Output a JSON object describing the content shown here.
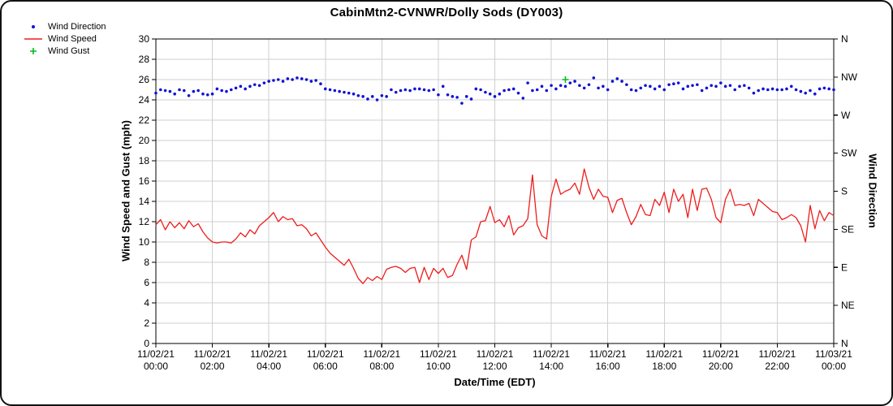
{
  "title": "CabinMtn2-CVNWR/Dolly Sods (DY003)",
  "legend": {
    "items": [
      {
        "label": "Wind Direction",
        "marker": "dot",
        "color": "#1212d6"
      },
      {
        "label": "Wind Speed",
        "marker": "line",
        "color": "#ee1c1c"
      },
      {
        "label": "Wind Gust",
        "marker": "plus",
        "color": "#00bb22"
      }
    ]
  },
  "chart_data": {
    "type": "line",
    "title": "CabinMtn2-CVNWR/Dolly Sods (DY003)",
    "xlabel": "Date/Time (EDT)",
    "ylabel_left": "Wind Speed and Gust (mph)",
    "ylabel_right": "Wind Direction",
    "ylim_left": [
      0,
      30
    ],
    "grid": true,
    "legend_position": "top-left",
    "interval_minutes": 10,
    "x_start": "11/02/21 00:00",
    "x_end": "11/03/21 00:00",
    "y_ticks_left": [
      0,
      2,
      4,
      6,
      8,
      10,
      12,
      14,
      16,
      18,
      20,
      22,
      24,
      26,
      28,
      30
    ],
    "x_ticks": [
      {
        "date": "11/02/21",
        "time": "00:00"
      },
      {
        "date": "11/02/21",
        "time": "02:00"
      },
      {
        "date": "11/02/21",
        "time": "04:00"
      },
      {
        "date": "11/02/21",
        "time": "06:00"
      },
      {
        "date": "11/02/21",
        "time": "08:00"
      },
      {
        "date": "11/02/21",
        "time": "10:00"
      },
      {
        "date": "11/02/21",
        "time": "12:00"
      },
      {
        "date": "11/02/21",
        "time": "14:00"
      },
      {
        "date": "11/02/21",
        "time": "16:00"
      },
      {
        "date": "11/02/21",
        "time": "18:00"
      },
      {
        "date": "11/02/21",
        "time": "20:00"
      },
      {
        "date": "11/02/21",
        "time": "22:00"
      },
      {
        "date": "11/03/21",
        "time": "00:00"
      }
    ],
    "right_axis_ticks": [
      {
        "label": "N",
        "mph_equiv": 30
      },
      {
        "label": "NW",
        "mph_equiv": 26.25
      },
      {
        "label": "W",
        "mph_equiv": 22.5
      },
      {
        "label": "SW",
        "mph_equiv": 18.75
      },
      {
        "label": "S",
        "mph_equiv": 15
      },
      {
        "label": "SE",
        "mph_equiv": 11.25
      },
      {
        "label": "E",
        "mph_equiv": 7.5
      },
      {
        "label": "NE",
        "mph_equiv": 3.75
      },
      {
        "label": "N",
        "mph_equiv": 0
      }
    ],
    "series": [
      {
        "name": "Wind Direction",
        "axis": "right",
        "unit": "degrees",
        "marker": "dot",
        "color": "#1212d6",
        "values": [
          296,
          300,
          299,
          298,
          295,
          300,
          299,
          293,
          298,
          299,
          295,
          294,
          295,
          301,
          299,
          298,
          300,
          302,
          304,
          301,
          304,
          306,
          305,
          308,
          310,
          311,
          312,
          310,
          313,
          312,
          314,
          313,
          312,
          310,
          311,
          307,
          301,
          300,
          299,
          298,
          297,
          296,
          295,
          293,
          292,
          289,
          292,
          288,
          293,
          292,
          300,
          297,
          299,
          300,
          299,
          301,
          301,
          300,
          299,
          300,
          294,
          304,
          294,
          292,
          291,
          284,
          292,
          289,
          301,
          300,
          297,
          295,
          292,
          295,
          299,
          300,
          301,
          296,
          290,
          308,
          299,
          300,
          304,
          299,
          305,
          301,
          305,
          304,
          308,
          310,
          305,
          302,
          306,
          314,
          302,
          304,
          300,
          310,
          313,
          310,
          306,
          300,
          299,
          302,
          305,
          304,
          301,
          304,
          300,
          306,
          307,
          308,
          301,
          304,
          305,
          306,
          299,
          302,
          305,
          304,
          308,
          304,
          305,
          300,
          304,
          305,
          302,
          296,
          299,
          301,
          300,
          301,
          300,
          300,
          301,
          304,
          300,
          298,
          296,
          299,
          295,
          301,
          302,
          301,
          300
        ]
      },
      {
        "name": "Wind Speed",
        "axis": "left",
        "unit": "mph",
        "marker": "line",
        "color": "#ee1c1c",
        "values": [
          11.7,
          12.2,
          11.2,
          12.0,
          11.4,
          11.9,
          11.3,
          12.1,
          11.5,
          11.8,
          11.0,
          10.4,
          10.0,
          9.9,
          10.0,
          10.0,
          9.9,
          10.3,
          10.9,
          10.5,
          11.2,
          10.8,
          11.6,
          12.0,
          12.4,
          12.9,
          12.0,
          12.5,
          12.2,
          12.3,
          11.6,
          11.7,
          11.3,
          10.6,
          10.9,
          10.2,
          9.5,
          8.9,
          8.5,
          8.1,
          7.7,
          8.3,
          7.4,
          6.4,
          5.9,
          6.5,
          6.2,
          6.6,
          6.3,
          7.3,
          7.5,
          7.6,
          7.4,
          7.0,
          7.4,
          7.5,
          6.0,
          7.5,
          6.3,
          7.4,
          6.9,
          7.4,
          6.5,
          6.7,
          7.8,
          8.7,
          7.3,
          10.2,
          10.5,
          12.0,
          12.1,
          13.5,
          11.9,
          12.2,
          11.5,
          12.6,
          10.7,
          11.4,
          11.6,
          12.3,
          16.6,
          11.7,
          10.6,
          10.3,
          14.5,
          16.2,
          14.7,
          15.0,
          15.2,
          15.8,
          14.7,
          17.2,
          15.4,
          14.2,
          15.2,
          14.5,
          14.4,
          12.9,
          14.1,
          14.3,
          12.9,
          11.7,
          12.5,
          13.7,
          12.7,
          12.6,
          14.2,
          13.6,
          14.9,
          12.9,
          15.2,
          14.0,
          14.7,
          12.4,
          15.2,
          13.1,
          15.2,
          15.3,
          14.2,
          12.4,
          11.9,
          14.2,
          15.2,
          13.6,
          13.7,
          13.6,
          13.8,
          12.6,
          14.2,
          13.8,
          13.4,
          13.0,
          12.9,
          12.2,
          12.4,
          12.7,
          12.4,
          11.6,
          10.0,
          13.6,
          11.3,
          13.1,
          12.1,
          12.9,
          12.6
        ]
      },
      {
        "name": "Wind Gust",
        "axis": "left",
        "unit": "mph",
        "marker": "plus",
        "color": "#00bb22",
        "points": [
          {
            "index": 87,
            "time": "14:30",
            "value": 26.0
          }
        ]
      }
    ]
  }
}
